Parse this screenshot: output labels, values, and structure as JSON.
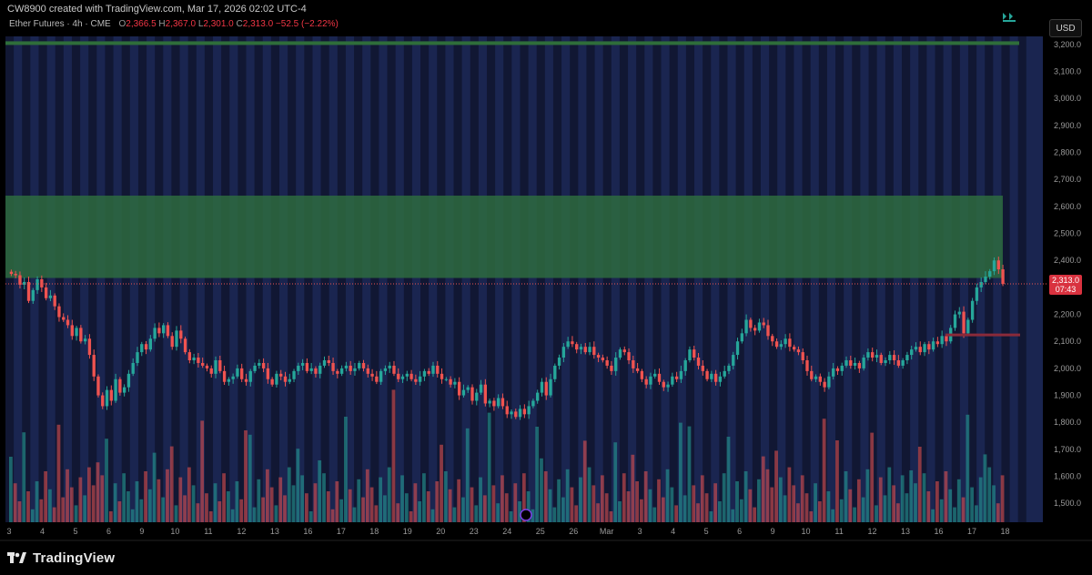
{
  "header": {
    "creator": "CW8900 created with TradingView.com, Mar 17, 2026 02:02 UTC-4",
    "symbol": "Ether Futures · 4h · CME",
    "o_label": "O",
    "o_val": "2,366.5",
    "h_label": "H",
    "h_val": "2,367.0",
    "l_label": "L",
    "l_val": "2,301.0",
    "c_label": "C",
    "c_val": "2,313.0",
    "change": "−52.5 (−2.22%)"
  },
  "currency_button": "USD",
  "last_price": {
    "value": "2,313.0",
    "countdown": "07:43"
  },
  "footer": {
    "brand": "TradingView"
  },
  "colors": {
    "up": "#26a69a",
    "down": "#ef5350",
    "zone": "#2e6b3f",
    "band_dark": "#111733",
    "band_light": "#1a2550",
    "grid_text": "#9a9a9a",
    "resistance_line": "#2f6e3a",
    "support_line": "#8a2a3a"
  },
  "chart_data": {
    "type": "candlestick",
    "title": "Ether Futures · 4h · CME",
    "y_axis": {
      "ticks": [
        1500,
        1600,
        1700,
        1800,
        1900,
        2000,
        2100,
        2200,
        2300,
        2400,
        2500,
        2600,
        2700,
        2800,
        2900,
        3000,
        3100,
        3200
      ],
      "tick_labels": [
        "1,500.0",
        "1,600.0",
        "1,700.0",
        "1,800.0",
        "1,900.0",
        "2,000.0",
        "2,100.0",
        "2,200.0",
        "2,300.0",
        "2,400.0",
        "2,500.0",
        "2,600.0",
        "2,700.0",
        "2,800.0",
        "2,900.0",
        "3,000.0",
        "3,100.0",
        "3,200.0"
      ],
      "range": [
        1430,
        3230
      ],
      "position": "right"
    },
    "x_axis": {
      "ticks": [
        "3",
        "4",
        "5",
        "6",
        "9",
        "10",
        "11",
        "12",
        "13",
        "16",
        "17",
        "18",
        "19",
        "20",
        "23",
        "24",
        "25",
        "26",
        "Mar",
        "3",
        "4",
        "5",
        "6",
        "9",
        "10",
        "11",
        "12",
        "13",
        "16",
        "17",
        "18"
      ],
      "day_index": [
        0,
        1,
        2,
        3,
        4,
        5,
        6,
        7,
        8,
        9,
        10,
        11,
        12,
        13,
        14,
        15,
        16,
        17,
        18,
        19,
        20,
        21,
        22,
        23,
        24,
        25,
        26,
        27,
        28,
        29,
        30
      ]
    },
    "zones": [
      {
        "kind": "supply",
        "low": 2335,
        "high": 2640
      },
      {
        "kind": "resistance_line",
        "value": 3205
      },
      {
        "kind": "support_line",
        "value": 2124,
        "start_day": 28.2
      },
      {
        "kind": "last_price_line",
        "value": 2313
      }
    ],
    "closes": [
      2350,
      2345,
      2310,
      2320,
      2250,
      2290,
      2330,
      2300,
      2260,
      2270,
      2230,
      2190,
      2180,
      2160,
      2120,
      2150,
      2100,
      2110,
      2050,
      1970,
      1900,
      1860,
      1920,
      1880,
      1960,
      1910,
      1930,
      1980,
      2020,
      2060,
      2090,
      2070,
      2110,
      2150,
      2130,
      2160,
      2120,
      2080,
      2140,
      2110,
      2060,
      2030,
      2040,
      2020,
      2010,
      2000,
      1980,
      2030,
      1990,
      1950,
      1960,
      1970,
      2000,
      1960,
      1950,
      1990,
      2010,
      2020,
      2000,
      1960,
      1940,
      1980,
      1970,
      1950,
      1960,
      1990,
      2010,
      2020,
      1990,
      2000,
      1980,
      2010,
      2030,
      2020,
      1990,
      1980,
      2000,
      2010,
      1990,
      2000,
      2020,
      2000,
      1980,
      1970,
      1950,
      1990,
      2000,
      2010,
      1980,
      1960,
      1970,
      1980,
      1960,
      1950,
      1970,
      1990,
      1980,
      2010,
      1980,
      1960,
      1960,
      1940,
      1950,
      1900,
      1920,
      1930,
      1880,
      1910,
      1940,
      1870,
      1880,
      1860,
      1890,
      1860,
      1830,
      1840,
      1820,
      1850,
      1830,
      1860,
      1880,
      1910,
      1950,
      1900,
      1960,
      2010,
      2040,
      2080,
      2100,
      2090,
      2070,
      2080,
      2060,
      2080,
      2050,
      2040,
      2030,
      2010,
      1990,
      2040,
      2070,
      2060,
      2030,
      2000,
      1990,
      1960,
      1940,
      1970,
      1980,
      1950,
      1930,
      1940,
      1970,
      1960,
      1990,
      2030,
      2070,
      2040,
      2010,
      1990,
      1960,
      1980,
      1950,
      1970,
      1990,
      2010,
      2050,
      2100,
      2130,
      2180,
      2150,
      2140,
      2170,
      2160,
      2120,
      2100,
      2080,
      2090,
      2110,
      2080,
      2070,
      2060,
      2030,
      1990,
      1960,
      1970,
      1950,
      1930,
      1970,
      2000,
      1990,
      2010,
      2030,
      2010,
      2020,
      2000,
      2040,
      2060,
      2040,
      2050,
      2020,
      2030,
      2050,
      2030,
      2010,
      2030,
      2050,
      2070,
      2080,
      2060,
      2090,
      2070,
      2100,
      2090,
      2120,
      2100,
      2150,
      2200,
      2210,
      2130,
      2180,
      2250,
      2300,
      2320,
      2340,
      2360,
      2400,
      2367,
      2313
    ]
  }
}
